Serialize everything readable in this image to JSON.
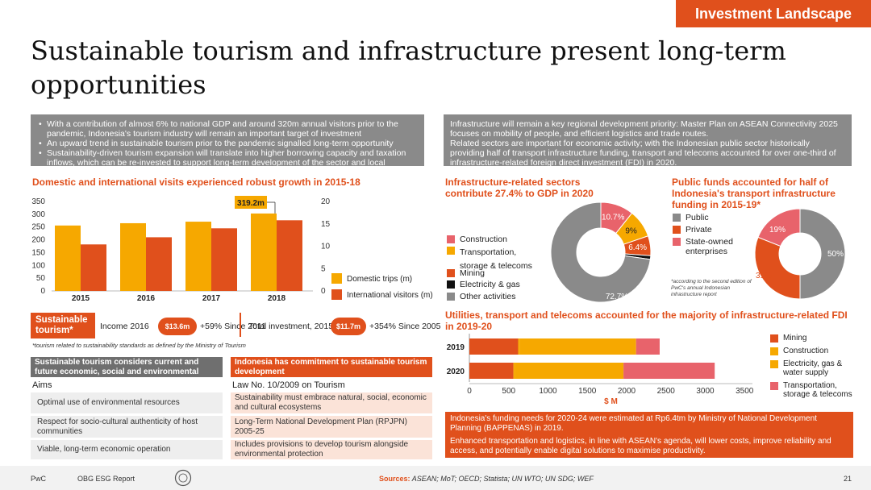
{
  "header": {
    "section_label": "Investment Landscape",
    "title": "Sustainable tourism and infrastructure present long-term opportunities"
  },
  "intro": {
    "bullets": [
      "With a contribution of almost 6% to national GDP and around 320m annual visitors prior to the pandemic, Indonesia's tourism industry will remain an important target of investment",
      "An upward trend in sustainable tourism prior to the pandemic signalled long-term opportunity",
      "Sustainability-driven tourism expansion will translate into higher borrowing capacity and taxation inflows, which can be re-invested to support long-term development of the sector and local communities"
    ],
    "infra_paragraphs": [
      "Infrastructure will remain a key regional development priority: Master Plan on ASEAN Connectivity 2025 focuses on mobility of people, and efficient logistics and trade routes.",
      "Related sectors are important for economic activity; with the Indonesian public sector historically providing half of transport infrastructure funding, transport and telecoms accounted for over one-third of infrastructure-related foreign direct investment (FDI) in 2020."
    ]
  },
  "tourism": {
    "sustainable_label": "Sustainable tourism*",
    "income_label": "Income 2016",
    "income_value": "$13.6m",
    "income_growth": "+59% Since 2011",
    "investment_label": "Total investment, 2015",
    "investment_value": "$11.7m",
    "investment_growth": "+354% Since 2005",
    "footnote": "*tourism related to sustainability standards as defined by the Ministry of Tourism"
  },
  "tables": {
    "left_heading": "Sustainable tourism considers current and future economic, social and environmental impacts",
    "right_heading": "Indonesia has commitment to sustainable tourism development",
    "left_label": "Aims",
    "right_label": "Law No. 10/2009 on Tourism",
    "left_rows": [
      "Optimal use of environmental resources",
      "Respect for socio-cultural authenticity of host communities",
      "Viable, long-term economic operation"
    ],
    "right_rows": [
      "Sustainability must embrace natural, social, economic and cultural ecosystems",
      "Long-Term National Development Plan (RPJPN) 2005-25",
      "Includes provisions to develop tourism alongside environmental  protection"
    ]
  },
  "public_funds_footnote": "*according to the second  edition of PwC's annual Indonesian infrastructure report",
  "note_box": [
    "Indonesia's funding needs for 2020-24 were estimated at Rp6.4tm by Ministry of National Development  Planning (BAPPENAS) in 2019.",
    "Enhanced transportation and logistics, in line with ASEAN's agenda, will lower costs, improve reliability and access, and potentially enable digital solutions to maximise productivity."
  ],
  "footer": {
    "left": "PwC",
    "report": "OBG ESG Report",
    "report_bold": "OBG",
    "sources_label": "Sources:",
    "sources": "ASEAN; MoT; OECD; Statista; UN WTO; UN SDG; WEF",
    "page": "21"
  },
  "colors": {
    "orange": "#e0501c",
    "yellow": "#f6a800",
    "grey": "#8a8a8a",
    "pink": "#e8636b",
    "black": "#111111",
    "dark_orange": "#d94a0f"
  },
  "chart_data": [
    {
      "id": "visits",
      "type": "bar",
      "title": "Domestic and international visits experienced robust growth in 2015-18",
      "categories": [
        "2015",
        "2016",
        "2017",
        "2018"
      ],
      "series": [
        {
          "name": "Domestic trips (m)",
          "values": [
            256,
            265,
            271,
            303
          ],
          "axis": "left",
          "color": "#f6a800"
        },
        {
          "name": "International visitors (m)",
          "values": [
            10.4,
            12.0,
            14.0,
            15.8
          ],
          "axis": "right",
          "color": "#e0501c"
        }
      ],
      "ylim": [
        0,
        350
      ],
      "yticks": [
        0,
        50,
        100,
        150,
        200,
        250,
        300,
        350
      ],
      "y2lim": [
        0,
        20
      ],
      "y2ticks": [
        0,
        5,
        10,
        15,
        20
      ],
      "annotation": "319.2m"
    },
    {
      "id": "gdp-sectors",
      "type": "pie",
      "title": "Infrastructure-related sectors contribute 27.4% to GDP in 2020",
      "slices": [
        {
          "label": "Construction",
          "value": 10.7,
          "display": "10.7%",
          "color": "#e8636b"
        },
        {
          "label": "Transportation, storage & telecoms",
          "value": 9,
          "display": "9%",
          "color": "#f6a800"
        },
        {
          "label": "Mining",
          "value": 6.4,
          "display": "6.4%",
          "color": "#e0501c"
        },
        {
          "label": "Electricity & gas",
          "value": 1.2,
          "display": "",
          "color": "#111111"
        },
        {
          "label": "Other activities",
          "value": 72.7,
          "display": "72.7%",
          "color": "#8a8a8a"
        }
      ]
    },
    {
      "id": "public-funds",
      "type": "pie",
      "title": "Public funds accounted for half of Indonesia's transport infrastructure funding in 2015-19*",
      "slices": [
        {
          "label": "Public",
          "value": 50,
          "display": "50%",
          "color": "#8a8a8a"
        },
        {
          "label": "Private",
          "value": 31,
          "display": "31%",
          "color": "#e0501c"
        },
        {
          "label": "State-owned enterprises",
          "value": 19,
          "display": "19%",
          "color": "#e8636b"
        }
      ]
    },
    {
      "id": "fdi",
      "type": "bar",
      "orientation": "horizontal",
      "stacked": true,
      "title": "Utilities, transport and telecoms accounted for the majority  of infrastructure-related FDI in 2019-20",
      "categories": [
        "2019",
        "2020"
      ],
      "series": [
        {
          "name": "Mining",
          "values": [
            620,
            560
          ],
          "color": "#e0501c"
        },
        {
          "name": "Construction",
          "values": [
            20,
            20
          ],
          "color": "#f6a800"
        },
        {
          "name": "Electricity, gas & water supply",
          "values": [
            1480,
            1380
          ],
          "color": "#f6a800"
        },
        {
          "name": "Transportation, storage  & telecoms",
          "values": [
            300,
            1160
          ],
          "color": "#e8636b"
        }
      ],
      "xlim": [
        0,
        3600
      ],
      "xticks": [
        0,
        500,
        1000,
        1500,
        2000,
        2500,
        3000,
        3500
      ],
      "xlabel": "$ M"
    }
  ]
}
